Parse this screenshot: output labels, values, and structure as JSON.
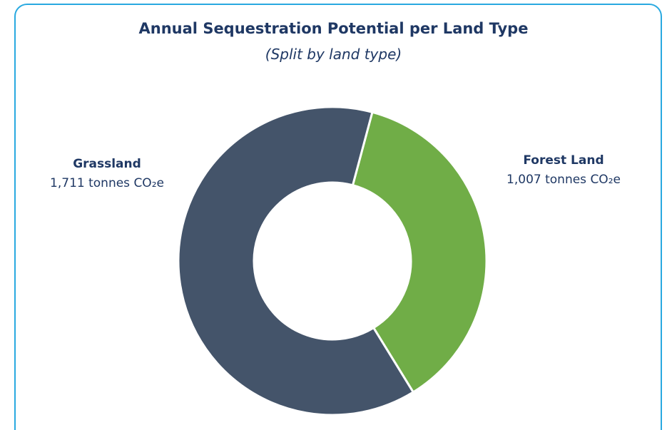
{
  "chart_data": {
    "type": "donut",
    "title": "Annual Sequestration Potential per Land Type",
    "subtitle": "(Split by land type)",
    "categories": [
      "Forest Land",
      "Grassland"
    ],
    "values": [
      1007,
      1711
    ],
    "value_labels": [
      "1,007 tonnes CO₂e",
      "1,711 tonnes CO₂e"
    ],
    "colors": [
      "#70ad47",
      "#44546a"
    ]
  }
}
